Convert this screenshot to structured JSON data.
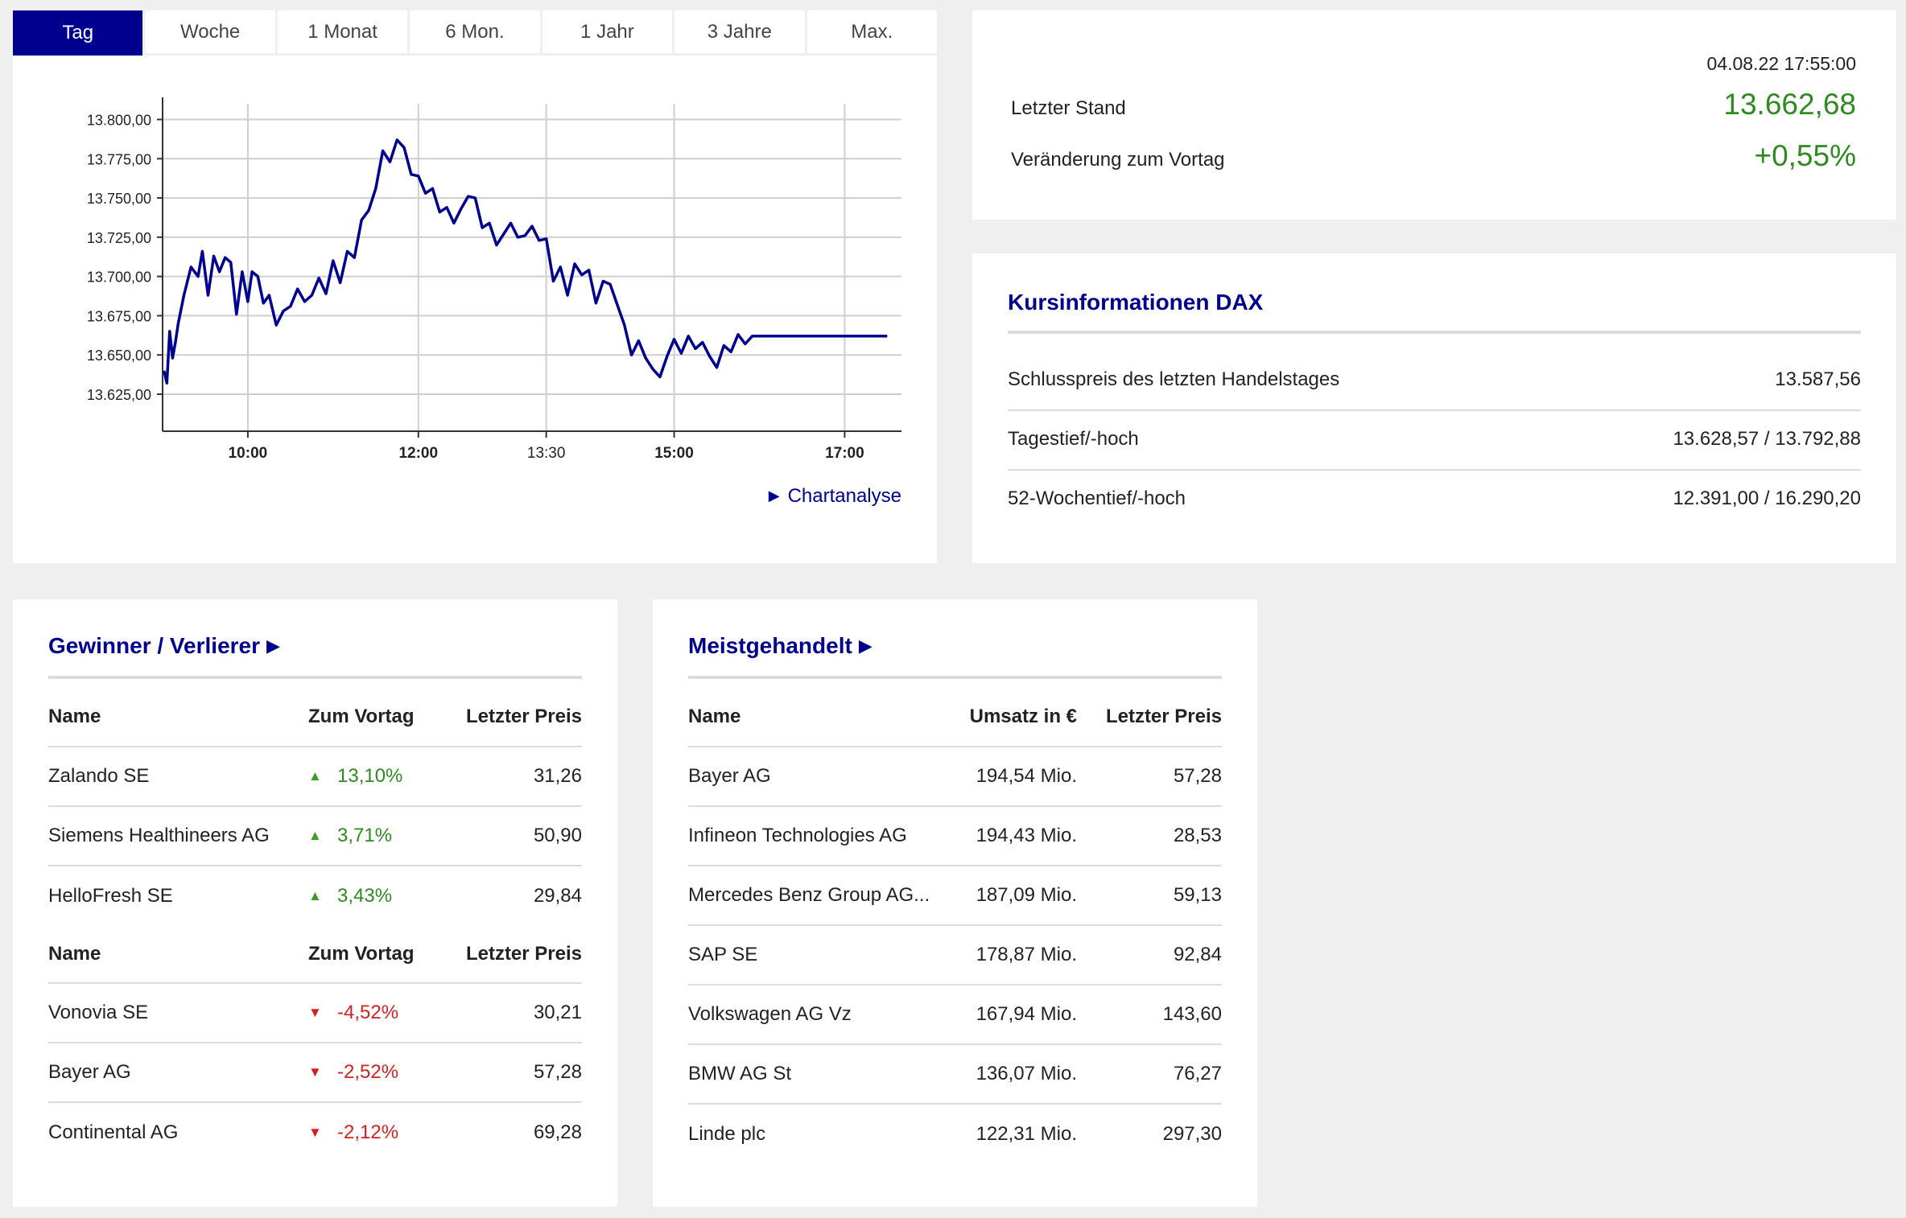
{
  "chart": {
    "tabs": [
      "Tag",
      "Woche",
      "1 Monat",
      "6 Mon.",
      "1 Jahr",
      "3 Jahre",
      "Max."
    ],
    "active_tab": 0,
    "link_label": "Chartanalyse",
    "accent_color": "#00008f"
  },
  "chart_data": {
    "type": "line",
    "title": "",
    "xlabel": "",
    "ylabel": "",
    "ylim": [
      13605,
      13810
    ],
    "yticks": [
      13625,
      13650,
      13675,
      13700,
      13725,
      13750,
      13775,
      13800
    ],
    "ytick_labels": [
      "13.625,00",
      "13.650,00",
      "13.675,00",
      "13.700,00",
      "13.725,00",
      "13.750,00",
      "13.775,00",
      "13.800,00"
    ],
    "xlim_min": [
      540,
      1060
    ],
    "xticks_min": [
      600,
      720,
      810,
      900,
      1020
    ],
    "xtick_labels": [
      "10:00",
      "12:00",
      "13:30",
      "15:00",
      "17:00"
    ],
    "xtick_bold": [
      true,
      true,
      false,
      true,
      true
    ],
    "grid": true,
    "series": [
      {
        "name": "",
        "x_min": [
          541,
          543,
          545,
          547,
          549,
          551,
          555,
          560,
          565,
          568,
          572,
          576,
          580,
          584,
          588,
          592,
          596,
          600,
          603,
          607,
          611,
          615,
          620,
          625,
          630,
          635,
          640,
          645,
          650,
          655,
          660,
          665,
          670,
          675,
          680,
          685,
          690,
          695,
          700,
          705,
          710,
          715,
          720,
          725,
          730,
          735,
          740,
          745,
          750,
          755,
          760,
          765,
          770,
          775,
          780,
          785,
          790,
          795,
          800,
          805,
          810,
          815,
          820,
          825,
          830,
          835,
          840,
          845,
          850,
          855,
          860,
          865,
          870,
          875,
          880,
          885,
          890,
          895,
          900,
          905,
          910,
          915,
          920,
          925,
          930,
          935,
          940,
          945,
          950,
          955,
          960,
          965,
          970,
          975,
          980,
          985,
          990,
          995,
          1000,
          1005,
          1010,
          1015,
          1020,
          1025,
          1030,
          1035,
          1040,
          1045,
          1050
        ],
        "values": [
          13640,
          13632,
          13665,
          13648,
          13658,
          13670,
          13688,
          13706,
          13700,
          13716,
          13688,
          13713,
          13703,
          13712,
          13709,
          13676,
          13703,
          13684,
          13703,
          13700,
          13683,
          13688,
          13669,
          13678,
          13681,
          13692,
          13684,
          13688,
          13699,
          13689,
          13710,
          13696,
          13716,
          13712,
          13736,
          13742,
          13756,
          13780,
          13773,
          13787,
          13782,
          13765,
          13764,
          13753,
          13756,
          13741,
          13744,
          13734,
          13743,
          13751,
          13750,
          13731,
          13734,
          13720,
          13727,
          13734,
          13725,
          13726,
          13732,
          13723,
          13724,
          13697,
          13706,
          13688,
          13708,
          13701,
          13704,
          13683,
          13697,
          13695,
          13682,
          13669,
          13650,
          13659,
          13648,
          13641,
          13636,
          13649,
          13660,
          13651,
          13662,
          13654,
          13658,
          13649,
          13642,
          13656,
          13652,
          13663,
          13657,
          13662,
          13662,
          13662,
          13662,
          13662,
          13662,
          13662,
          13662,
          13662,
          13662,
          13662,
          13662,
          13662,
          13662,
          13662,
          13662,
          13662,
          13662,
          13662,
          13662
        ]
      }
    ]
  },
  "quote": {
    "timestamp": "04.08.22 17:55:00",
    "last_label": "Letzter Stand",
    "last_value": "13.662,68",
    "change_label": "Veränderung zum Vortag",
    "change_value": "+0,55%",
    "positive_color": "#2f8a22"
  },
  "info": {
    "title": "Kursinformationen DAX",
    "rows": [
      {
        "label": "Schlusspreis des letzten Handelstages",
        "value": "13.587,56"
      },
      {
        "label": "Tagestief/-hoch",
        "value": "13.628,57 / 13.792,88"
      },
      {
        "label": "52-Wochentief/-hoch",
        "value": "12.391,00 / 16.290,20"
      }
    ]
  },
  "gainers": {
    "title": "Gewinner / Verlierer",
    "headers": {
      "name": "Name",
      "change": "Zum Vortag",
      "price": "Letzter Preis"
    },
    "winners": [
      {
        "name": "Zalando SE",
        "change": "13,10%",
        "price": "31,26"
      },
      {
        "name": "Siemens Healthineers AG",
        "change": "3,71%",
        "price": "50,90"
      },
      {
        "name": "HelloFresh SE",
        "change": "3,43%",
        "price": "29,84"
      }
    ],
    "losers": [
      {
        "name": "Vonovia SE",
        "change": "-4,52%",
        "price": "30,21"
      },
      {
        "name": "Bayer AG",
        "change": "-2,52%",
        "price": "57,28"
      },
      {
        "name": "Continental AG",
        "change": "-2,12%",
        "price": "69,28"
      }
    ],
    "up_color": "#2f8a22",
    "down_color": "#d42020"
  },
  "most_active": {
    "title": "Meistgehandelt",
    "headers": {
      "name": "Name",
      "volume": "Umsatz in €",
      "price": "Letzter Preis"
    },
    "rows": [
      {
        "name": "Bayer AG",
        "volume": "194,54 Mio.",
        "price": "57,28"
      },
      {
        "name": "Infineon Technologies AG",
        "volume": "194,43 Mio.",
        "price": "28,53"
      },
      {
        "name": "Mercedes Benz Group AG...",
        "volume": "187,09 Mio.",
        "price": "59,13"
      },
      {
        "name": "SAP SE",
        "volume": "178,87 Mio.",
        "price": "92,84"
      },
      {
        "name": "Volkswagen AG Vz",
        "volume": "167,94 Mio.",
        "price": "143,60"
      },
      {
        "name": "BMW AG St",
        "volume": "136,07 Mio.",
        "price": "76,27"
      },
      {
        "name": "Linde plc",
        "volume": "122,31 Mio.",
        "price": "297,30"
      }
    ]
  }
}
